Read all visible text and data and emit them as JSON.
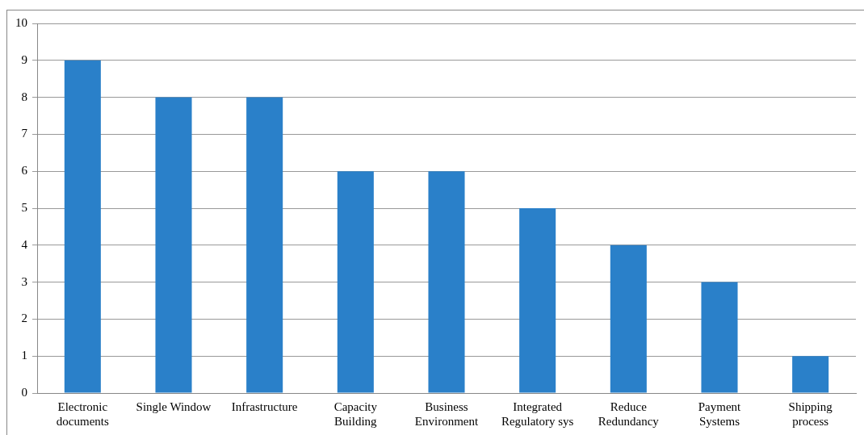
{
  "chart_data": {
    "type": "bar",
    "categories": [
      "Electronic documents",
      "Single Window",
      "Infrastructure",
      "Capacity Building",
      "Business Environment",
      "Integrated Regulatory sys",
      "Reduce Redundancy",
      "Payment Systems",
      "Shipping process"
    ],
    "values": [
      9,
      8,
      8,
      6,
      6,
      5,
      4,
      3,
      1
    ],
    "color": "#2a80c9",
    "ylim": [
      0,
      10
    ],
    "yticks": [
      0,
      1,
      2,
      3,
      4,
      5,
      6,
      7,
      8,
      9,
      10
    ],
    "grid": "y",
    "legend": false
  }
}
